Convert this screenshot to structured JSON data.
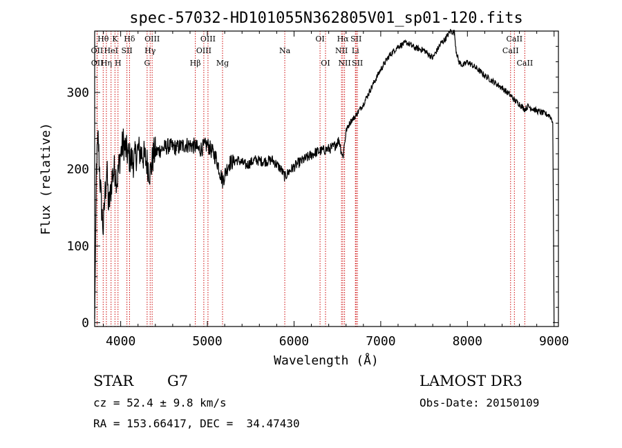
{
  "chart_data": {
    "type": "line",
    "title": "spec-57032-HD101055N362805V01_sp01-120.fits",
    "xlabel": "Wavelength (Å)",
    "ylabel": "Flux (relative)",
    "xlim": [
      3700,
      9050
    ],
    "ylim": [
      -5,
      380
    ],
    "x_ticks": [
      4000,
      5000,
      6000,
      7000,
      8000,
      9000
    ],
    "y_ticks": [
      0,
      100,
      200,
      300
    ],
    "series": [
      {
        "name": "flux",
        "x": [
          3700,
          3720,
          3740,
          3760,
          3780,
          3800,
          3820,
          3840,
          3860,
          3880,
          3900,
          3930,
          3960,
          3990,
          4030,
          4060,
          4100,
          4150,
          4200,
          4250,
          4300,
          4340,
          4380,
          4450,
          4550,
          4650,
          4750,
          4861,
          4900,
          5000,
          5100,
          5175,
          5250,
          5350,
          5450,
          5550,
          5650,
          5750,
          5850,
          5893,
          5950,
          6050,
          6150,
          6250,
          6350,
          6450,
          6520,
          6563,
          6600,
          6650,
          6700,
          6800,
          6900,
          7000,
          7100,
          7200,
          7300,
          7400,
          7500,
          7600,
          7650,
          7700,
          7750,
          7800,
          7850,
          7870,
          7900,
          7950,
          8000,
          8100,
          8200,
          8300,
          8400,
          8500,
          8542,
          8600,
          8662,
          8700,
          8800,
          8900,
          8950,
          8985,
          9000
        ],
        "y": [
          5,
          200,
          240,
          190,
          150,
          120,
          170,
          200,
          150,
          165,
          190,
          200,
          185,
          215,
          235,
          225,
          215,
          210,
          225,
          220,
          210,
          195,
          220,
          225,
          230,
          228,
          232,
          230,
          225,
          232,
          215,
          185,
          208,
          212,
          205,
          212,
          210,
          212,
          200,
          190,
          198,
          208,
          215,
          222,
          225,
          228,
          238,
          215,
          250,
          262,
          268,
          285,
          308,
          330,
          348,
          360,
          365,
          358,
          355,
          345,
          355,
          365,
          370,
          380,
          378,
          355,
          340,
          335,
          340,
          332,
          322,
          314,
          306,
          296,
          290,
          285,
          278,
          282,
          276,
          272,
          270,
          262,
          0
        ]
      }
    ],
    "lines": [
      {
        "name": "Hθ",
        "wavelength": 3798,
        "row": 0
      },
      {
        "name": "OII",
        "wavelength": 3727,
        "row": 1
      },
      {
        "name": "OII",
        "wavelength": 3729,
        "row": 2
      },
      {
        "name": "K",
        "wavelength": 3934,
        "row": 0
      },
      {
        "name": "HeI",
        "wavelength": 3889,
        "row": 1
      },
      {
        "name": "Hη",
        "wavelength": 3835,
        "row": 2
      },
      {
        "name": "H",
        "wavelength": 3969,
        "row": 2
      },
      {
        "name": "Hδ",
        "wavelength": 4102,
        "row": 0
      },
      {
        "name": "SII",
        "wavelength": 4072,
        "row": 1
      },
      {
        "name": "OIII",
        "wavelength": 4363,
        "row": 0
      },
      {
        "name": "Hγ",
        "wavelength": 4340,
        "row": 1
      },
      {
        "name": "G",
        "wavelength": 4305,
        "row": 2
      },
      {
        "name": "Hβ",
        "wavelength": 4861,
        "row": 2
      },
      {
        "name": "OIII",
        "wavelength": 5007,
        "row": 0
      },
      {
        "name": "OIII",
        "wavelength": 4959,
        "row": 1
      },
      {
        "name": "Mg",
        "wavelength": 5175,
        "row": 2
      },
      {
        "name": "Na",
        "wavelength": 5893,
        "row": 1
      },
      {
        "name": "OI",
        "wavelength": 6300,
        "row": 0
      },
      {
        "name": "OI",
        "wavelength": 6363,
        "row": 2
      },
      {
        "name": "Hα",
        "wavelength": 6563,
        "row": 0
      },
      {
        "name": "NII",
        "wavelength": 6548,
        "row": 1
      },
      {
        "name": "NII",
        "wavelength": 6583,
        "row": 2
      },
      {
        "name": "SII",
        "wavelength": 6716,
        "row": 0
      },
      {
        "name": "Li",
        "wavelength": 6708,
        "row": 1
      },
      {
        "name": "SII",
        "wavelength": 6731,
        "row": 2
      },
      {
        "name": "CaII",
        "wavelength": 8542,
        "row": 0
      },
      {
        "name": "CaII",
        "wavelength": 8498,
        "row": 1
      },
      {
        "name": "CaII",
        "wavelength": 8662,
        "row": 2
      }
    ]
  },
  "info": {
    "class": "STAR",
    "subclass": "G7",
    "survey": "LAMOST DR3",
    "cz": "cz = 52.4 ± 9.8 km/s",
    "obs_date": "Obs-Date: 20150109",
    "coords": "RA = 153.66417, DEC =  34.47430"
  },
  "colors": {
    "spectrum": "#000000",
    "line_marker": "#cc0000"
  }
}
